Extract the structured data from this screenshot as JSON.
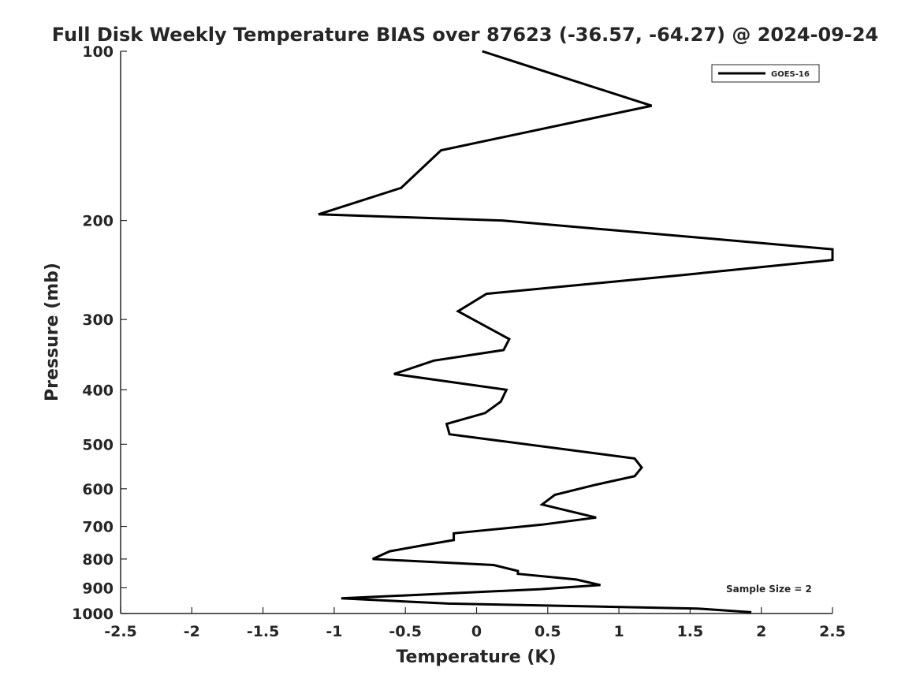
{
  "chart_data": {
    "type": "line",
    "title": "Full Disk Weekly Temperature BIAS over 87623 (-36.57, -64.27) @ 2024-09-24",
    "xlabel": "Temperature (K)",
    "ylabel": "Pressure (mb)",
    "xlim": [
      -2.5,
      2.5
    ],
    "ylim": [
      100,
      1000
    ],
    "y_scale": "log",
    "y_reversed": true,
    "grid": false,
    "x_ticks": [
      -2.5,
      -2,
      -1.5,
      -1,
      -0.5,
      0,
      0.5,
      1,
      1.5,
      2,
      2.5
    ],
    "x_tick_labels": [
      "-2.5",
      "-2",
      "-1.5",
      "-1",
      "-0.5",
      "0",
      "0.5",
      "1",
      "1.5",
      "2",
      "2.5"
    ],
    "y_ticks": [
      100,
      200,
      300,
      400,
      500,
      600,
      700,
      800,
      900,
      1000
    ],
    "y_tick_labels": [
      "100",
      "200",
      "300",
      "400",
      "500",
      "600",
      "700",
      "800",
      "900",
      "1000"
    ],
    "legend_position": "top-right",
    "annotation": "Sample Size = 2",
    "series": [
      {
        "name": "GOES-16",
        "color": "#000000",
        "points": [
          {
            "x": 0.04,
            "y": 100
          },
          {
            "x": 1.23,
            "y": 125
          },
          {
            "x": -0.25,
            "y": 150
          },
          {
            "x": -0.53,
            "y": 175
          },
          {
            "x": -1.11,
            "y": 195
          },
          {
            "x": 0.18,
            "y": 200
          },
          {
            "x": 2.5,
            "y": 225
          },
          {
            "x": 2.5,
            "y": 235
          },
          {
            "x": 1.45,
            "y": 250
          },
          {
            "x": 0.07,
            "y": 270
          },
          {
            "x": -0.13,
            "y": 290
          },
          {
            "x": 0.08,
            "y": 310
          },
          {
            "x": 0.23,
            "y": 325
          },
          {
            "x": 0.19,
            "y": 340
          },
          {
            "x": -0.3,
            "y": 355
          },
          {
            "x": -0.58,
            "y": 375
          },
          {
            "x": 0.21,
            "y": 400
          },
          {
            "x": 0.17,
            "y": 420
          },
          {
            "x": 0.06,
            "y": 440
          },
          {
            "x": -0.21,
            "y": 460
          },
          {
            "x": -0.19,
            "y": 480
          },
          {
            "x": 1.11,
            "y": 530
          },
          {
            "x": 1.16,
            "y": 550
          },
          {
            "x": 1.11,
            "y": 570
          },
          {
            "x": 0.84,
            "y": 590
          },
          {
            "x": 0.55,
            "y": 615
          },
          {
            "x": 0.46,
            "y": 640
          },
          {
            "x": 0.84,
            "y": 675
          },
          {
            "x": 0.46,
            "y": 695
          },
          {
            "x": -0.16,
            "y": 720
          },
          {
            "x": -0.16,
            "y": 740
          },
          {
            "x": -0.36,
            "y": 755
          },
          {
            "x": -0.61,
            "y": 775
          },
          {
            "x": -0.73,
            "y": 800
          },
          {
            "x": 0.12,
            "y": 820
          },
          {
            "x": 0.29,
            "y": 840
          },
          {
            "x": 0.29,
            "y": 850
          },
          {
            "x": 0.7,
            "y": 870
          },
          {
            "x": 0.87,
            "y": 890
          },
          {
            "x": 0.45,
            "y": 905
          },
          {
            "x": -0.95,
            "y": 940
          },
          {
            "x": -0.2,
            "y": 960
          },
          {
            "x": 1.55,
            "y": 980
          },
          {
            "x": 1.93,
            "y": 995
          }
        ]
      }
    ]
  }
}
